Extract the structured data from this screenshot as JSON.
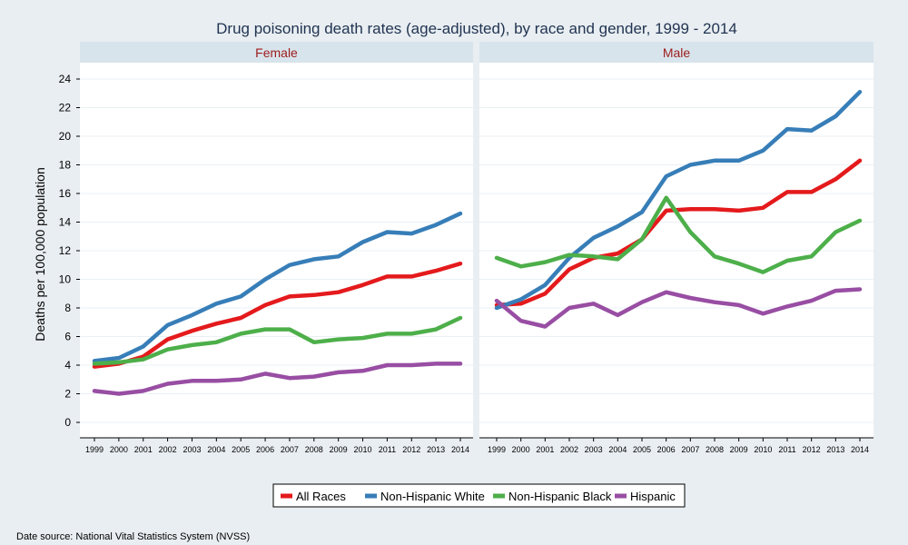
{
  "chart_data": {
    "type": "line",
    "title": "Drug poisoning death rates (age-adjusted), by race and gender, 1999 - 2014",
    "ylabel": "Deaths per 100,000 population",
    "xlabel": "",
    "x": [
      1999,
      2000,
      2001,
      2002,
      2003,
      2004,
      2005,
      2006,
      2007,
      2008,
      2009,
      2010,
      2011,
      2012,
      2013,
      2014
    ],
    "ylim": [
      0,
      24
    ],
    "yticks": [
      0,
      2,
      4,
      6,
      8,
      10,
      12,
      14,
      16,
      18,
      20,
      22,
      24
    ],
    "grid": true,
    "legend_position": "bottom",
    "panels": [
      {
        "title": "Female",
        "series": [
          {
            "name": "All Races",
            "color": "#e41a1c",
            "values": [
              3.9,
              4.1,
              4.6,
              5.8,
              6.4,
              6.9,
              7.3,
              8.2,
              8.8,
              8.9,
              9.1,
              9.6,
              10.2,
              10.2,
              10.6,
              11.1
            ]
          },
          {
            "name": "Non-Hispanic White",
            "color": "#377eb8",
            "values": [
              4.3,
              4.5,
              5.3,
              6.8,
              7.5,
              8.3,
              8.8,
              10.0,
              11.0,
              11.4,
              11.6,
              12.6,
              13.3,
              13.2,
              13.8,
              14.6
            ]
          },
          {
            "name": "Non-Hispanic Black",
            "color": "#4daf4a",
            "values": [
              4.1,
              4.2,
              4.4,
              5.1,
              5.4,
              5.6,
              6.2,
              6.5,
              6.5,
              5.6,
              5.8,
              5.9,
              6.2,
              6.2,
              6.5,
              7.3
            ]
          },
          {
            "name": "Hispanic",
            "color": "#984ea3",
            "values": [
              2.2,
              2.0,
              2.2,
              2.7,
              2.9,
              2.9,
              3.0,
              3.4,
              3.1,
              3.2,
              3.5,
              3.6,
              4.0,
              4.0,
              4.1,
              4.1
            ]
          }
        ]
      },
      {
        "title": "Male",
        "series": [
          {
            "name": "All Races",
            "color": "#e41a1c",
            "values": [
              8.2,
              8.3,
              9.0,
              10.7,
              11.5,
              11.8,
              12.8,
              14.8,
              14.9,
              14.9,
              14.8,
              15.0,
              16.1,
              16.1,
              17.0,
              18.3
            ]
          },
          {
            "name": "Non-Hispanic White",
            "color": "#377eb8",
            "values": [
              8.0,
              8.6,
              9.6,
              11.5,
              12.9,
              13.7,
              14.7,
              17.2,
              18.0,
              18.3,
              18.3,
              19.0,
              20.5,
              20.4,
              21.4,
              23.1
            ]
          },
          {
            "name": "Non-Hispanic Black",
            "color": "#4daf4a",
            "values": [
              11.5,
              10.9,
              11.2,
              11.7,
              11.6,
              11.4,
              12.8,
              15.7,
              13.3,
              11.6,
              11.1,
              10.5,
              11.3,
              11.6,
              13.3,
              14.1
            ]
          },
          {
            "name": "Hispanic",
            "color": "#984ea3",
            "values": [
              8.5,
              7.1,
              6.7,
              8.0,
              8.3,
              7.5,
              8.4,
              9.1,
              8.7,
              8.4,
              8.2,
              7.6,
              8.1,
              8.5,
              9.2,
              9.3
            ]
          }
        ]
      }
    ],
    "legend": [
      "All Races",
      "Non-Hispanic White",
      "Non-Hispanic Black",
      "Hispanic"
    ],
    "note": "Date source: National Vital Statistics System (NVSS)"
  }
}
